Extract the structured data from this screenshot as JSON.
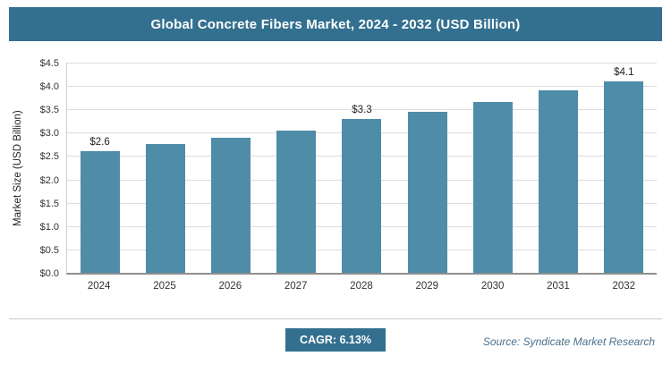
{
  "header": {
    "title": "Global Concrete Fibers Market, 2024 - 2032 (USD Billion)"
  },
  "chart_data": {
    "type": "bar",
    "title": "Global Concrete Fibers Market, 2024 - 2032 (USD Billion)",
    "categories": [
      "2024",
      "2025",
      "2026",
      "2027",
      "2028",
      "2029",
      "2030",
      "2031",
      "2032"
    ],
    "values": [
      2.6,
      2.75,
      2.9,
      3.05,
      3.3,
      3.45,
      3.65,
      3.9,
      4.1
    ],
    "bar_labels": [
      "$2.6",
      "",
      "",
      "",
      "$3.3",
      "",
      "",
      "",
      "$4.1"
    ],
    "xlabel": "",
    "ylabel": "Market Size (USD Billion)",
    "ylim": [
      0,
      4.5
    ],
    "ytick_step": 0.5,
    "ytick_prefix": "$",
    "grid": "horizontal",
    "legend": "none"
  },
  "footer": {
    "cagr": "CAGR: 6.13%",
    "source": "Source: Syndicate Market Research"
  },
  "colors": {
    "banner": "#33708f",
    "bar": "#4f8ca8",
    "gridline": "#dcdcdc"
  }
}
